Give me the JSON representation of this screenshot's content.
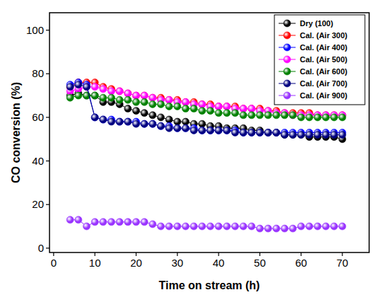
{
  "chart_data": {
    "type": "line",
    "x_label": "Time on stream (h)",
    "y_label": "CO conversion (%)",
    "xlim": [
      -1,
      76.5
    ],
    "xticks": [
      0,
      10,
      20,
      30,
      40,
      50,
      60,
      70
    ],
    "ylim": [
      -2,
      108
    ],
    "yticks": [
      0,
      20,
      40,
      60,
      80,
      100
    ],
    "legend": "upper right",
    "marker": "circle",
    "x": [
      4,
      6,
      8,
      10,
      12,
      14,
      16,
      18,
      20,
      22,
      24,
      26,
      28,
      30,
      32,
      34,
      36,
      38,
      40,
      42,
      44,
      46,
      48,
      50,
      52,
      54,
      56,
      58,
      60,
      62,
      64,
      66,
      68,
      70
    ],
    "series": [
      {
        "name": "Dry (100)",
        "color": "#000000",
        "values": [
          70,
          71,
          70,
          70,
          67,
          67,
          66,
          64,
          63,
          62,
          61,
          60,
          59,
          58,
          58,
          57,
          57,
          56,
          56,
          55,
          55,
          55,
          54,
          54,
          53,
          53,
          52,
          52,
          52,
          51,
          51,
          51,
          51,
          50
        ]
      },
      {
        "name": "Cal. (Air 300)",
        "color": "#ff0000",
        "values": [
          74,
          76,
          76,
          76,
          74,
          73,
          72,
          71,
          70,
          70,
          69,
          69,
          68,
          68,
          67,
          67,
          66,
          66,
          65,
          65,
          65,
          64,
          64,
          64,
          63,
          63,
          62,
          62,
          62,
          62,
          61,
          61,
          61,
          61
        ]
      },
      {
        "name": "Cal. (Air 400)",
        "color": "#0000ff",
        "values": [
          75,
          76,
          75,
          60,
          59,
          59,
          58,
          58,
          58,
          57,
          57,
          56,
          56,
          55,
          55,
          55,
          54,
          54,
          54,
          54,
          54,
          53,
          53,
          53,
          53,
          53,
          53,
          53,
          53,
          53,
          53,
          53,
          53,
          53
        ]
      },
      {
        "name": "Cal. (Air 500)",
        "color": "#ff00ff",
        "values": [
          72,
          73,
          74,
          74,
          73,
          72,
          72,
          71,
          70,
          70,
          69,
          68,
          68,
          67,
          67,
          66,
          66,
          65,
          65,
          65,
          64,
          64,
          64,
          63,
          63,
          62,
          62,
          61,
          61,
          61,
          61,
          61,
          61,
          61
        ]
      },
      {
        "name": "Cal. (Air 600)",
        "color": "#008000",
        "values": [
          69,
          70,
          70,
          70,
          69,
          69,
          68,
          68,
          67,
          67,
          66,
          66,
          65,
          65,
          64,
          64,
          63,
          63,
          62,
          62,
          62,
          61,
          61,
          61,
          61,
          61,
          61,
          61,
          60,
          60,
          60,
          60,
          60,
          60
        ]
      },
      {
        "name": "Cal. (Air 700)",
        "color": "#000080",
        "values": [
          74,
          75,
          74,
          60,
          59,
          58,
          58,
          58,
          57,
          57,
          57,
          56,
          55,
          55,
          55,
          54,
          54,
          54,
          54,
          54,
          53,
          53,
          53,
          53,
          53,
          53,
          52,
          52,
          52,
          52,
          52,
          52,
          52,
          52
        ]
      },
      {
        "name": "Cal. (Air 900)",
        "color": "#9933ff",
        "values": [
          13,
          13,
          10,
          12,
          12,
          12,
          12,
          12,
          12,
          12,
          11,
          10,
          10,
          10,
          10,
          10,
          10,
          10,
          10,
          10,
          10,
          10,
          10,
          9,
          9,
          9,
          9,
          9,
          10,
          10,
          10,
          10,
          10,
          10
        ]
      }
    ]
  }
}
